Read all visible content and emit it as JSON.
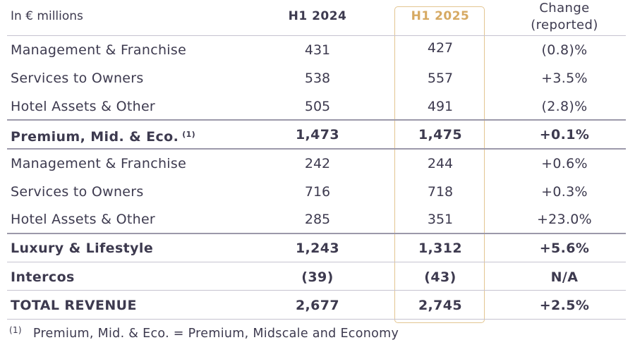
{
  "header": {
    "unit": "In € millions",
    "col1": "H1 2024",
    "col2": "H1 2025",
    "col3_line1": "Change",
    "col3_line2": "(reported)"
  },
  "rows": [
    {
      "label": "Management & Franchise",
      "h1_2024": "431",
      "h1_2025": "427",
      "change": "(0.8)%"
    },
    {
      "label": "Services to Owners",
      "h1_2024": "538",
      "h1_2025": "557",
      "change": "+3.5%"
    },
    {
      "label": "Hotel Assets & Other",
      "h1_2024": "505",
      "h1_2025": "491",
      "change": "(2.8)%"
    },
    {
      "label": "Premium, Mid. & Eco.",
      "sup": "(1)",
      "h1_2024": "1,473",
      "h1_2025": "1,475",
      "change": "+0.1%"
    },
    {
      "label": "Management & Franchise",
      "h1_2024": "242",
      "h1_2025": "244",
      "change": "+0.6%"
    },
    {
      "label": "Services to Owners",
      "h1_2024": "716",
      "h1_2025": "718",
      "change": "+0.3%"
    },
    {
      "label": "Hotel Assets & Other",
      "h1_2024": "285",
      "h1_2025": "351",
      "change": "+23.0%"
    },
    {
      "label": "Luxury & Lifestyle",
      "h1_2024": "1,243",
      "h1_2025": "1,312",
      "change": "+5.6%"
    },
    {
      "label": "Intercos",
      "h1_2024": "(39)",
      "h1_2025": "(43)",
      "change": "N/A"
    },
    {
      "label": "TOTAL REVENUE",
      "h1_2024": "2,677",
      "h1_2025": "2,745",
      "change": "+2.5%"
    }
  ],
  "footnote": {
    "mark": "(1)",
    "text": "Premium, Mid. & Eco. = Premium, Midscale and Economy"
  },
  "colors": {
    "text": "#3d3a4f",
    "accent": "#d6a962",
    "accent_border": "#e3c591",
    "rule_thin": "#c6c3d0",
    "rule_thick": "#9c99aa"
  }
}
